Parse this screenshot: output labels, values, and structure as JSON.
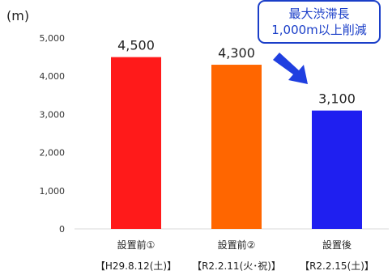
{
  "title": "",
  "clipped_heading": "",
  "callout": {
    "line1": "最大渋滞長",
    "line2": "1,000m以上削減"
  },
  "chart_data": {
    "type": "bar",
    "ylabel": "(m)",
    "ylim": [
      0,
      5000
    ],
    "yticks": [
      "0",
      "1,000",
      "2,000",
      "3,000",
      "4,000",
      "5,000"
    ],
    "ytick_values": [
      0,
      1000,
      2000,
      3000,
      4000,
      5000
    ],
    "grid": false,
    "categories": [
      "設置前①",
      "設置前②",
      "設置後"
    ],
    "dates": [
      "【H29.8.12(土)】",
      "【R2.2.11(火･祝)】",
      "【R2.2.15(土)】"
    ],
    "values": [
      4500,
      4300,
      3100
    ],
    "value_labels": [
      "4,500",
      "4,300",
      "3,100"
    ],
    "colors": [
      "#ff1a1a",
      "#ff6600",
      "#1f1ff0"
    ],
    "arrow_color": "#1f3fe0"
  }
}
